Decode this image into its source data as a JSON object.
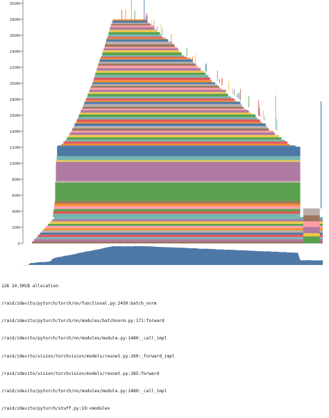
{
  "chart_data": {
    "type": "area",
    "title": "",
    "xlabel": "",
    "ylabel": "",
    "ylim": [
      0,
      310
    ],
    "yunit": "M",
    "yticks": [
      "0",
      "20M",
      "40M",
      "60M",
      "80M",
      "100M",
      "120M",
      "140M",
      "160M",
      "180M",
      "200M",
      "220M",
      "240M",
      "260M",
      "280M",
      "300M"
    ],
    "ytick_values": [
      0,
      20,
      40,
      60,
      80,
      100,
      120,
      140,
      160,
      180,
      200,
      220,
      240,
      260,
      280,
      300
    ],
    "grid": false,
    "legend": "none",
    "stacked": true,
    "colors": [
      "#4e79a7",
      "#f28e2c",
      "#e15759",
      "#76b7b2",
      "#59a14f",
      "#edc949",
      "#af7aa1",
      "#ff9da7",
      "#9c755f",
      "#bab0ab"
    ],
    "base_layers": [
      {
        "value": 2.5,
        "color": "#9c755f"
      },
      {
        "value": 3.0,
        "color": "#af7aa1"
      },
      {
        "value": 2.5,
        "color": "#76b7b2"
      },
      {
        "value": 3.0,
        "color": "#e15759"
      },
      {
        "value": 2.5,
        "color": "#4e79a7"
      },
      {
        "value": 3.0,
        "color": "#bab0ab"
      },
      {
        "value": 2.5,
        "color": "#f28e2c"
      },
      {
        "value": 3.0,
        "color": "#ff9da7"
      },
      {
        "value": 2.5,
        "color": "#59a14f"
      },
      {
        "value": 3.0,
        "color": "#edc949"
      },
      {
        "value": 2.5,
        "color": "#af7aa1"
      },
      {
        "value": 3.0,
        "color": "#76b7b2"
      }
    ],
    "persistent_layers": [
      {
        "value": 4,
        "color": "#76b7b2"
      },
      {
        "value": 3,
        "color": "#e15759"
      },
      {
        "value": 3,
        "color": "#59a14f"
      },
      {
        "value": 4,
        "color": "#ff9da7"
      },
      {
        "value": 3,
        "color": "#f28e2c"
      },
      {
        "value": 3,
        "color": "#9c755f"
      },
      {
        "value": 23,
        "color": "#59a14f"
      },
      {
        "value": 2,
        "color": "#bab0ab"
      },
      {
        "value": 24,
        "color": "#af7aa1"
      },
      {
        "value": 2,
        "color": "#edc949"
      },
      {
        "value": 5,
        "color": "#76b7b2"
      },
      {
        "value": 12,
        "color": "#4e79a7"
      }
    ],
    "transient_layers": {
      "count": 62,
      "min_value": 1.5,
      "max_value": 3.5
    },
    "peak_mb": 296,
    "main_chart_area_label": "",
    "overview_area": {
      "present": true,
      "color": "#4e79a7"
    },
    "selected_allocation": {
      "index": "126",
      "size": "24.5MiB allocation",
      "stack": [
        "/raid/zdevito/pytorch/torch/nn/functional.py:2450:batch_norm",
        "/raid/zdevito/pytorch/torch/nn/modules/batchnorm.py:171:forward",
        "/raid/zdevito/pytorch/torch/nn/modules/module.py:1480:_call_impl",
        "/raid/zdevito/vision/torchvision/models/resnet.py:269:_forward_impl",
        "/raid/zdevito/vision/torchvision/models/resnet.py:285:forward",
        "/raid/zdevito/pytorch/torch/nn/modules/module.py:1480:_call_impl",
        "/raid/zdevito/pytorch/stuff.py:19:<module>"
      ]
    }
  }
}
